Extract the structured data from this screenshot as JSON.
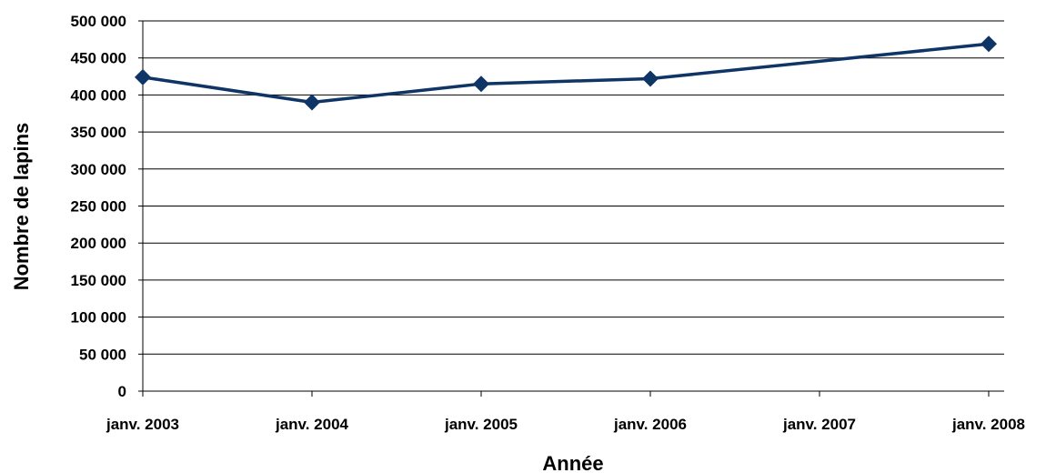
{
  "chart_data": {
    "type": "line",
    "title": "",
    "xlabel": "Année",
    "ylabel": "Nombre de lapins",
    "categories": [
      "janv. 2003",
      "janv. 2004",
      "janv. 2005",
      "janv. 2006",
      "janv. 2007",
      "janv. 2008"
    ],
    "y_ticks": [
      "0",
      "50 000",
      "100 000",
      "150 000",
      "200 000",
      "250 000",
      "300 000",
      "350 000",
      "400 000",
      "450 000",
      "500 000"
    ],
    "ylim": [
      0,
      500000
    ],
    "grid": true,
    "legend": "none",
    "series": [
      {
        "color": "#0f3466",
        "marker": "diamond",
        "x": [
          "janv. 2003",
          "janv. 2004",
          "janv. 2005",
          "janv. 2006",
          "janv. 2008"
        ],
        "values": [
          424000,
          390000,
          415000,
          422000,
          469000
        ]
      }
    ]
  }
}
